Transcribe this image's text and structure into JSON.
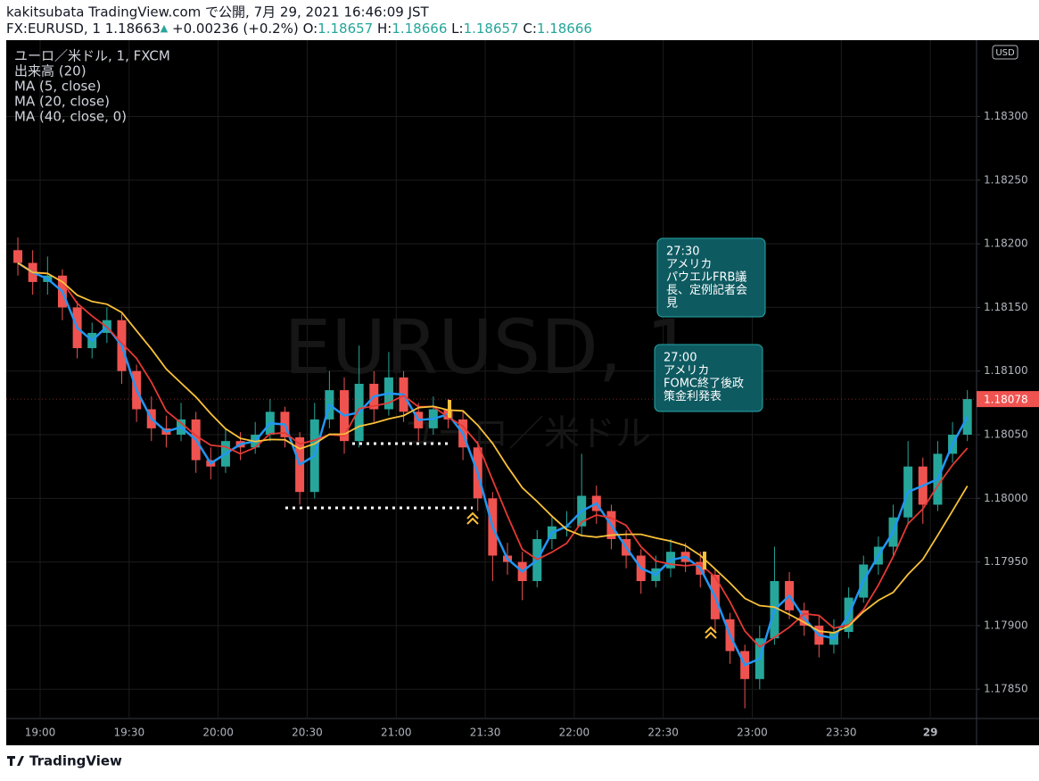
{
  "header": {
    "published": "kakitsubata TradingView.com で公開, 7月 29, 2021 16:46:09 JST",
    "symbol": "FX:EURUSD, 1",
    "last": "1.18663",
    "change": "+0.00236 (+0.2%)",
    "o_label": "O:",
    "o": "1.18657",
    "h_label": "H:",
    "h": "1.18666",
    "l_label": "L:",
    "l": "1.18657",
    "c_label": "C:",
    "c": "1.18666"
  },
  "watermark": {
    "symbol": "EURUSD, 1",
    "name": "ユーロ／米ドル"
  },
  "currency": "USD",
  "footer": {
    "brand": "TradingView"
  },
  "chart_data": {
    "type": "candlestick",
    "legend": [
      "ユーロ／米ドル, 1, FXCM",
      "出来高 (20)"
    ],
    "indicators": [
      {
        "name": "MA (5, close)",
        "color": "#2196f3"
      },
      {
        "name": "MA (20, close)",
        "color": "#e53935"
      },
      {
        "name": "MA (40, close, 0)",
        "color": "#f9c13a"
      }
    ],
    "up_color": "#26a69a",
    "down_color": "#ef5350",
    "grid": true,
    "categories": [
      null,
      null,
      "19:00",
      null,
      null,
      null,
      null,
      null,
      "19:30",
      null,
      null,
      null,
      null,
      null,
      "20:00",
      null,
      null,
      null,
      null,
      null,
      "20:30",
      null,
      null,
      null,
      null,
      null,
      "21:00",
      null,
      null,
      null,
      null,
      null,
      "21:30",
      null,
      null,
      null,
      null,
      null,
      "22:00",
      null,
      null,
      null,
      null,
      null,
      "22:30",
      null,
      null,
      null,
      null,
      null,
      "23:00",
      null,
      null,
      null,
      null,
      null,
      "23:30",
      null,
      null,
      null,
      null,
      null,
      "29",
      null,
      null
    ],
    "open": [
      1.18195,
      1.18185,
      1.1817,
      1.18175,
      1.1815,
      1.18118,
      1.1813,
      1.1814,
      1.181,
      1.1807,
      1.18055,
      1.1805,
      1.18062,
      1.1803,
      1.18025,
      1.18045,
      1.1804,
      1.1805,
      1.18068,
      1.18048,
      1.18005,
      1.18062,
      1.18085,
      1.18045,
      1.1809,
      1.1807,
      1.18095,
      1.18068,
      1.18055,
      1.1807,
      1.18062,
      1.1804,
      1.18,
      1.17955,
      1.1795,
      1.17935,
      1.17968,
      1.17978,
      1.17978,
      1.18002,
      1.1799,
      1.17968,
      1.17955,
      1.17935,
      1.17945,
      1.17958,
      1.1795,
      1.1794,
      1.17905,
      1.1788,
      1.17858,
      1.1789,
      1.17935,
      1.17912,
      1.179,
      1.17885,
      1.17895,
      1.17922,
      1.17948,
      1.17962,
      1.17985,
      1.18025,
      1.17995,
      1.18035,
      1.1805
    ],
    "high": [
      1.18205,
      1.18195,
      1.1819,
      1.1818,
      1.18155,
      1.18138,
      1.1815,
      1.18145,
      1.18105,
      1.1808,
      1.18065,
      1.18075,
      1.18068,
      1.1804,
      1.18055,
      1.18052,
      1.1806,
      1.18078,
      1.18072,
      1.18052,
      1.18075,
      1.181,
      1.18095,
      1.1812,
      1.181,
      1.18115,
      1.181,
      1.18075,
      1.1808,
      1.18078,
      1.18068,
      1.18045,
      1.18005,
      1.17965,
      1.17958,
      1.17975,
      1.17985,
      1.1799,
      1.18035,
      1.1801,
      1.17995,
      1.17975,
      1.1796,
      1.17955,
      1.17968,
      1.17965,
      1.17958,
      1.17945,
      1.1791,
      1.17885,
      1.179,
      1.17962,
      1.17942,
      1.17918,
      1.17908,
      1.17905,
      1.1793,
      1.17955,
      1.1797,
      1.17995,
      1.18045,
      1.18032,
      1.18045,
      1.1806,
      1.18085
    ],
    "low": [
      1.18175,
      1.1816,
      1.1816,
      1.1814,
      1.1811,
      1.1811,
      1.18122,
      1.1809,
      1.1806,
      1.18045,
      1.1804,
      1.18045,
      1.1802,
      1.18015,
      1.1802,
      1.1803,
      1.18035,
      1.18045,
      1.1804,
      1.17995,
      1.18,
      1.18055,
      1.18035,
      1.1804,
      1.1806,
      1.18065,
      1.1806,
      1.18045,
      1.1805,
      1.18055,
      1.1803,
      1.1799,
      1.17935,
      1.1794,
      1.1792,
      1.1793,
      1.1796,
      1.1797,
      1.1797,
      1.1798,
      1.1796,
      1.17945,
      1.17925,
      1.1793,
      1.17938,
      1.17942,
      1.1793,
      1.17895,
      1.1787,
      1.17835,
      1.1785,
      1.17885,
      1.17905,
      1.17892,
      1.17875,
      1.17878,
      1.1789,
      1.17918,
      1.1794,
      1.17955,
      1.1798,
      1.1798,
      1.1799,
      1.18028,
      1.18045
    ],
    "close": [
      1.18185,
      1.1817,
      1.18175,
      1.1815,
      1.18118,
      1.1813,
      1.1814,
      1.181,
      1.1807,
      1.18055,
      1.1805,
      1.18062,
      1.1803,
      1.18025,
      1.18045,
      1.1804,
      1.1805,
      1.18068,
      1.18048,
      1.18005,
      1.18062,
      1.18085,
      1.18045,
      1.1809,
      1.1807,
      1.18095,
      1.18068,
      1.18055,
      1.1807,
      1.18062,
      1.1804,
      1.18,
      1.17955,
      1.1795,
      1.17935,
      1.17968,
      1.17978,
      1.17978,
      1.18002,
      1.1799,
      1.17968,
      1.17955,
      1.17935,
      1.17945,
      1.17958,
      1.1795,
      1.1794,
      1.17905,
      1.1788,
      1.17858,
      1.1789,
      1.17935,
      1.17912,
      1.179,
      1.17885,
      1.17895,
      1.17922,
      1.17948,
      1.17962,
      1.17985,
      1.18025,
      1.17995,
      1.18035,
      1.1805,
      1.18078
    ],
    "ylim": [
      1.17827,
      1.1836
    ],
    "yticks": [
      {
        "value": 1.1785,
        "label": "1.17850"
      },
      {
        "value": 1.179,
        "label": "1.17900"
      },
      {
        "value": 1.1795,
        "label": "1.17950"
      },
      {
        "value": 1.18,
        "label": "1.18000"
      },
      {
        "value": 1.1805,
        "label": "1.18050"
      },
      {
        "value": 1.181,
        "label": "1.18100"
      },
      {
        "value": 1.1815,
        "label": "1.18150"
      },
      {
        "value": 1.182,
        "label": "1.18200"
      },
      {
        "value": 1.1825,
        "label": "1.18250"
      },
      {
        "value": 1.183,
        "label": "1.18300"
      }
    ],
    "annotations": [
      {
        "lines": [
          "27:30",
          "アメリカ",
          "パウエルFRB議",
          "長、定例記者会",
          "見"
        ]
      },
      {
        "lines": [
          "27:00",
          "アメリカ",
          "FOMC終了後政",
          "策金利発表"
        ]
      }
    ]
  }
}
